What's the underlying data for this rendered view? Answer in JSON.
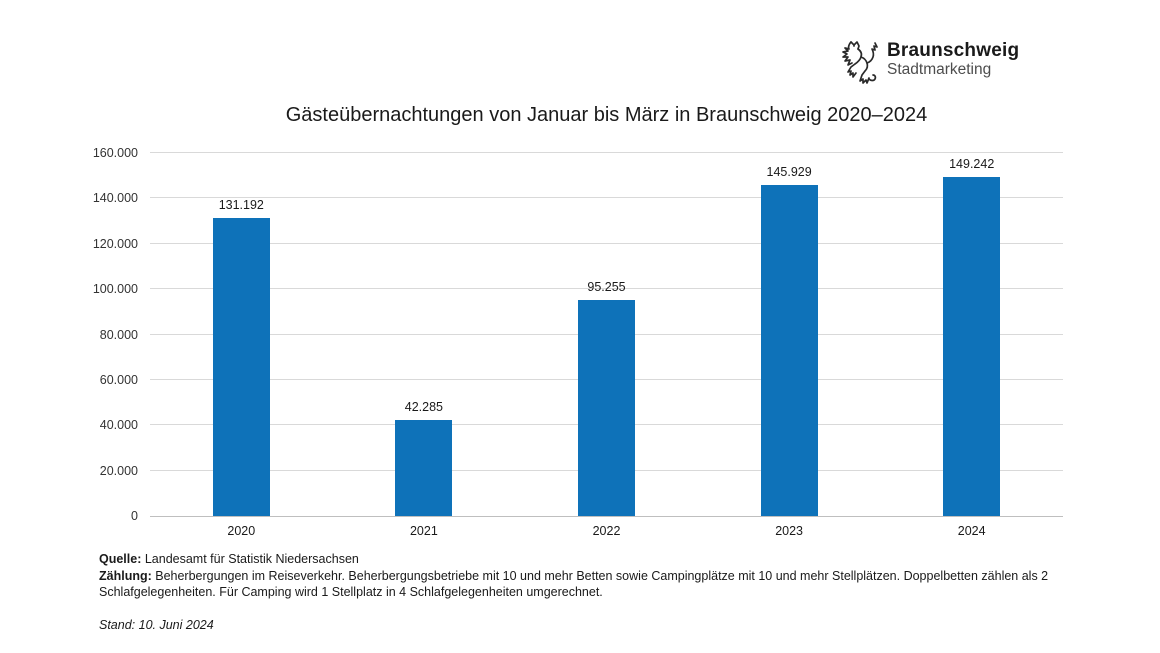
{
  "logo": {
    "brand": "Braunschweig",
    "sub": "Stadtmarketing",
    "icon": "braunschweig-lion"
  },
  "chart_data": {
    "type": "bar",
    "title": "Gästeübernachtungen von Januar bis März in Braunschweig 2020–2024",
    "categories": [
      "2020",
      "2021",
      "2022",
      "2023",
      "2024"
    ],
    "values": [
      131192,
      42285,
      95255,
      145929,
      149242
    ],
    "value_labels": [
      "131.192",
      "42.285",
      "95.255",
      "145.929",
      "149.242"
    ],
    "xlabel": "",
    "ylabel": "",
    "ylim": [
      0,
      160000
    ],
    "ytick_step": 20000,
    "ytick_labels": [
      "0",
      "20.000",
      "40.000",
      "60.000",
      "80.000",
      "100.000",
      "120.000",
      "140.000",
      "160.000"
    ],
    "grid": "horizontal",
    "legend": "none",
    "bar_color": "#0e72b9"
  },
  "footer": {
    "quelle_label": "Quelle:",
    "quelle_text": " Landesamt für Statistik Niedersachsen",
    "zaehlung_label": "Zählung:",
    "zaehlung_text": " Beherbergungen im Reiseverkehr. Beherbergungsbetriebe mit 10 und mehr Betten sowie Campingplätze mit 10 und mehr Stellplätzen. Doppelbetten zählen als 2 Schlafgelegenheiten. Für Camping wird 1 Stellplatz in 4 Schlafgelegenheiten umgerechnet.",
    "stand": "Stand: 10. Juni 2024"
  }
}
